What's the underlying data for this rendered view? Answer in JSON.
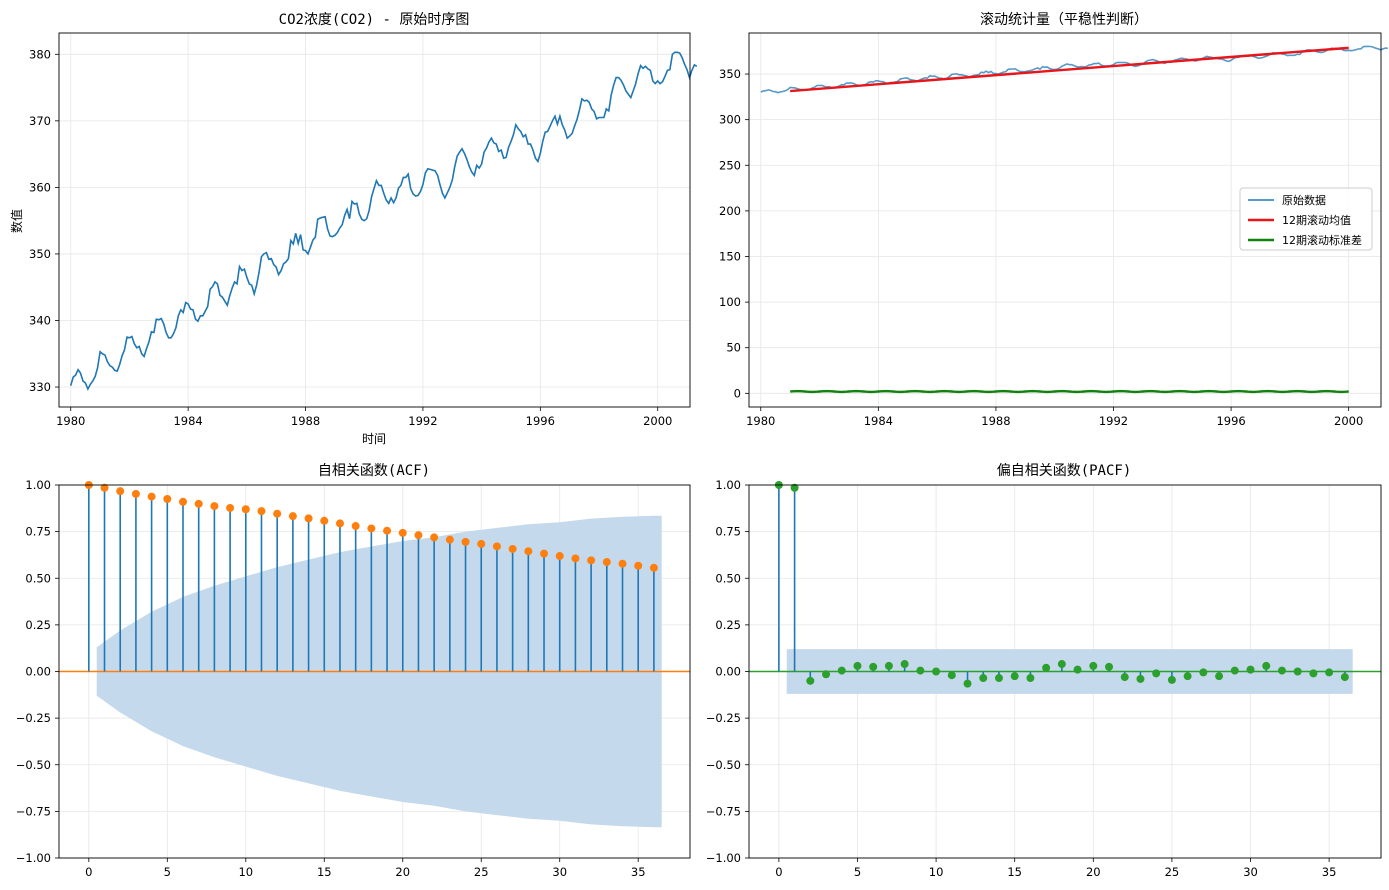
{
  "colors": {
    "blue": "#1f77b4",
    "orange": "#ff7f0e",
    "green": "#2ca02c",
    "red": "#e8161a",
    "dark_green": "#12820f",
    "band": "#c5d9ec"
  },
  "chart_data": [
    {
      "id": "raw",
      "type": "line",
      "title": "CO2浓度(CO2) - 原始时序图",
      "xlabel": "时间",
      "ylabel": "数值",
      "xlim": [
        1979.6,
        2001.1
      ],
      "ylim": [
        327.0,
        383.2
      ],
      "xticks": [
        1980,
        1984,
        1988,
        1992,
        1996,
        2000
      ],
      "yticks": [
        330,
        340,
        350,
        360,
        370,
        380
      ],
      "grid": true,
      "series": [
        {
          "x_start": 1980.0,
          "x_step": 0.08333,
          "values": [
            330.2,
            331.5,
            331.8,
            332.6,
            332.1,
            330.9,
            330.6,
            329.7,
            330.4,
            330.9,
            331.6,
            332.9,
            335.3,
            335.0,
            334.8,
            333.8,
            333.2,
            333.0,
            332.5,
            332.4,
            333.4,
            334.7,
            335.6,
            337.5,
            337.4,
            337.6,
            336.5,
            335.9,
            336.1,
            335.0,
            334.6,
            335.8,
            336.8,
            338.3,
            338.2,
            340.2,
            340.1,
            340.3,
            339.5,
            338.2,
            337.4,
            337.4,
            338.0,
            338.9,
            340.7,
            341.6,
            341.2,
            342.7,
            342.5,
            341.7,
            341.6,
            340.2,
            339.9,
            340.7,
            340.7,
            341.4,
            342.1,
            344.7,
            345.1,
            345.8,
            345.5,
            343.8,
            343.5,
            342.9,
            342.3,
            343.7,
            344.9,
            345.8,
            345.5,
            348.1,
            347.5,
            347.7,
            346.5,
            345.5,
            345.3,
            344.0,
            345.3,
            347.3,
            349.6,
            350.0,
            350.2,
            349.2,
            349.3,
            348.4,
            348.0,
            346.9,
            347.5,
            348.5,
            348.8,
            349.3,
            352.0,
            351.5,
            353.1,
            351.6,
            352.9,
            350.6,
            350.5,
            350.0,
            351.0,
            352.1,
            352.5,
            355.2,
            355.4,
            355.5,
            355.6,
            353.8,
            352.7,
            352.6,
            352.8,
            353.2,
            353.9,
            354.4,
            355.8,
            356.7,
            355.3,
            357.9,
            357.5,
            357.6,
            356.0,
            355.2,
            355.0,
            355.3,
            356.5,
            358.6,
            359.8,
            361.0,
            360.3,
            360.3,
            359.1,
            358.1,
            357.6,
            358.4,
            357.7,
            358.4,
            359.9,
            360.3,
            361.5,
            361.5,
            362.0,
            359.8,
            359.0,
            358.7,
            358.8,
            359.4,
            360.4,
            362.2,
            362.8,
            362.7,
            362.6,
            362.5,
            361.8,
            360.4,
            359.1,
            358.4,
            359.2,
            360.0,
            361.1,
            363.1,
            364.7,
            365.3,
            365.8,
            365.1,
            364.2,
            363.1,
            362.3,
            361.8,
            363.3,
            362.9,
            363.5,
            365.3,
            365.9,
            366.8,
            367.4,
            366.7,
            366.5,
            365.4,
            365.6,
            364.4,
            364.5,
            366.0,
            366.9,
            367.9,
            369.4,
            368.8,
            368.4,
            367.6,
            367.9,
            366.5,
            366.5,
            365.6,
            364.4,
            363.9,
            365.1,
            366.9,
            368.3,
            368.4,
            369.2,
            370.0,
            370.7,
            369.5,
            370.7,
            369.4,
            368.6,
            367.4,
            367.7,
            368.1,
            369.2,
            370.2,
            371.6,
            373.3,
            373.0,
            373.1,
            372.8,
            371.8,
            371.4,
            370.3,
            370.5,
            370.5,
            370.5,
            371.8,
            371.5,
            373.9,
            375.4,
            376.5,
            376.5,
            376.1,
            375.4,
            374.5,
            374.0,
            373.5,
            374.5,
            375.6,
            377.1,
            378.3,
            377.9,
            378.2,
            377.8,
            377.6,
            376.0,
            375.6,
            376.0,
            375.6,
            375.9,
            376.7,
            377.6,
            377.7,
            380.0,
            380.3,
            380.3,
            380.2,
            379.5,
            378.5,
            377.7,
            376.5,
            377.6,
            378.4,
            378.2
          ]
        }
      ]
    },
    {
      "id": "rolling",
      "type": "line",
      "title": "滚动统计量（平稳性判断）",
      "xlim": [
        1979.6,
        2001.1
      ],
      "ylim": [
        -15,
        395
      ],
      "xticks": [
        1980,
        1984,
        1988,
        1992,
        1996,
        2000
      ],
      "yticks": [
        0,
        50,
        100,
        150,
        200,
        250,
        300,
        350
      ],
      "grid": true,
      "legend_position": "center-right",
      "series": [
        {
          "name": "原始数据",
          "ref": "raw"
        },
        {
          "name": "12期滚动均值",
          "x": [
            1981.0,
            2000.0
          ],
          "y": [
            331.4,
            378.7
          ]
        },
        {
          "name": "12期滚动标准差",
          "x_start": 1981.0,
          "x_end": 2000.0,
          "mean": 2.0,
          "amplitude": 0.4
        }
      ]
    },
    {
      "id": "acf",
      "type": "stem",
      "title": "自相关函数(ACF)",
      "xlim": [
        -1.9,
        38.3
      ],
      "ylim": [
        -1.0,
        1.0
      ],
      "xticks": [
        0,
        5,
        10,
        15,
        20,
        25,
        30,
        35
      ],
      "yticks": [
        -1.0,
        -0.75,
        -0.5,
        -0.25,
        0.0,
        0.25,
        0.5,
        0.75,
        1.0
      ],
      "ytick_labels": [
        "−1.00",
        "−0.75",
        "−0.50",
        "−0.25",
        "0.00",
        "0.25",
        "0.50",
        "0.75",
        "1.00"
      ],
      "grid": true,
      "lags": [
        0,
        1,
        2,
        3,
        4,
        5,
        6,
        7,
        8,
        9,
        10,
        11,
        12,
        13,
        14,
        15,
        16,
        17,
        18,
        19,
        20,
        21,
        22,
        23,
        24,
        25,
        26,
        27,
        28,
        29,
        30,
        31,
        32,
        33,
        34,
        35,
        36
      ],
      "values": [
        1.0,
        0.985,
        0.967,
        0.952,
        0.938,
        0.925,
        0.91,
        0.899,
        0.887,
        0.877,
        0.87,
        0.86,
        0.846,
        0.833,
        0.821,
        0.808,
        0.794,
        0.78,
        0.767,
        0.755,
        0.743,
        0.731,
        0.719,
        0.707,
        0.695,
        0.684,
        0.671,
        0.657,
        0.645,
        0.632,
        0.619,
        0.606,
        0.596,
        0.587,
        0.578,
        0.567,
        0.556
      ],
      "confidence_band": {
        "lags": [
          0.5,
          1,
          2,
          3,
          4,
          5,
          6,
          8,
          10,
          12,
          14,
          16,
          18,
          20,
          22,
          24,
          26,
          28,
          30,
          32,
          34,
          36,
          36.5
        ],
        "upper": [
          0.13,
          0.16,
          0.22,
          0.27,
          0.32,
          0.36,
          0.4,
          0.46,
          0.51,
          0.56,
          0.6,
          0.64,
          0.67,
          0.7,
          0.72,
          0.75,
          0.77,
          0.79,
          0.8,
          0.82,
          0.83,
          0.835,
          0.835
        ]
      }
    },
    {
      "id": "pacf",
      "type": "stem",
      "title": "偏自相关函数(PACF)",
      "xlim": [
        -1.9,
        38.3
      ],
      "ylim": [
        -1.0,
        1.0
      ],
      "xticks": [
        0,
        5,
        10,
        15,
        20,
        25,
        30,
        35
      ],
      "yticks": [
        -1.0,
        -0.75,
        -0.5,
        -0.25,
        0.0,
        0.25,
        0.5,
        0.75,
        1.0
      ],
      "ytick_labels": [
        "−1.00",
        "−0.75",
        "−0.50",
        "−0.25",
        "0.00",
        "0.25",
        "0.50",
        "0.75",
        "1.00"
      ],
      "grid": true,
      "lags": [
        0,
        1,
        2,
        3,
        4,
        5,
        6,
        7,
        8,
        9,
        10,
        11,
        12,
        13,
        14,
        15,
        16,
        17,
        18,
        19,
        20,
        21,
        22,
        23,
        24,
        25,
        26,
        27,
        28,
        29,
        30,
        31,
        32,
        33,
        34,
        35,
        36
      ],
      "values": [
        1.0,
        0.985,
        -0.05,
        -0.015,
        0.005,
        0.03,
        0.025,
        0.03,
        0.04,
        0.005,
        0.0,
        -0.02,
        -0.065,
        -0.035,
        -0.035,
        -0.025,
        -0.035,
        0.02,
        0.04,
        0.01,
        0.03,
        0.025,
        -0.03,
        -0.04,
        -0.01,
        -0.045,
        -0.025,
        -0.005,
        -0.025,
        0.005,
        0.01,
        0.03,
        0.005,
        0.0,
        -0.01,
        -0.005,
        -0.03
      ],
      "confidence_band": {
        "lag_start": 0.5,
        "lag_end": 36.5,
        "upper": 0.12,
        "lower": -0.12
      }
    }
  ]
}
